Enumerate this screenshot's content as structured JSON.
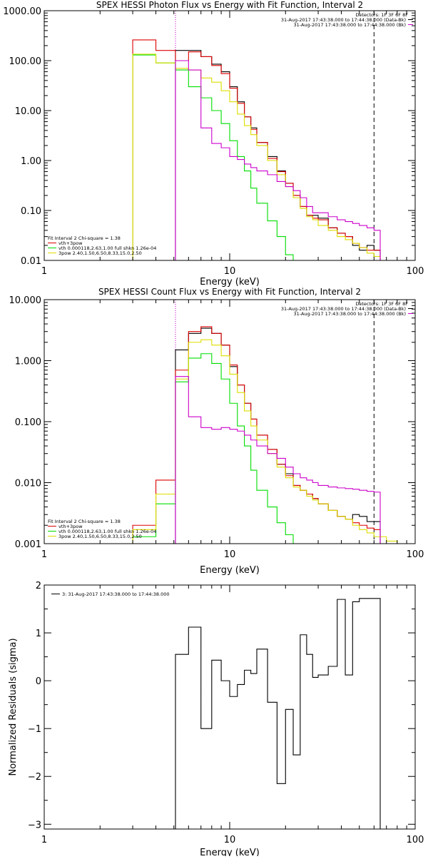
{
  "chart_data": [
    {
      "type": "line",
      "title": "SPEX HESSI Photon Flux vs Energy with Fit Function, Interval 2",
      "xlabel": "Energy (keV)",
      "ylabel": "",
      "xscale": "log",
      "yscale": "log",
      "xlim": [
        1,
        100
      ],
      "ylim": [
        0.01,
        1000
      ],
      "xticks": [
        {
          "v": 1,
          "label": "1"
        },
        {
          "v": 10,
          "label": "10"
        },
        {
          "v": 100,
          "label": "100"
        }
      ],
      "yticks": [
        {
          "v": 0.01,
          "label": "0.01"
        },
        {
          "v": 0.1,
          "label": "0.10"
        },
        {
          "v": 1,
          "label": "1.00"
        },
        {
          "v": 10,
          "label": "10.00"
        },
        {
          "v": 100,
          "label": "100.00"
        },
        {
          "v": 1000,
          "label": "1000.00"
        }
      ],
      "vlines": [
        {
          "x": 5.1,
          "style": "dotted",
          "color": "#000000"
        },
        {
          "x": 5.1,
          "style": "dotted",
          "color": "#cc00cc"
        },
        {
          "x": 60,
          "style": "dashed",
          "color": "#000000"
        }
      ],
      "legend_top": {
        "header": "Detectors: 1F 3F 6F 8F",
        "entries": [
          {
            "label": "31-Aug-2017 17:43:38.000 to 17:44:38.000 (Data-Bk)",
            "color": "#000000"
          },
          {
            "label": "31-Aug-2017 17:43:38.000 to 17:44:38.000 (Bk)",
            "color": "#cc00cc"
          }
        ]
      },
      "legend_bottom": {
        "header": "Fit Interval 2   Chi-square = 1.38",
        "entries": [
          {
            "label": "vth+3pow",
            "color": "#dd0000"
          },
          {
            "label": "vth 0.000118,2.63,1.00   full shkn 1.26e-04",
            "color": "#00dd00"
          },
          {
            "label": "3pow 2.40,1.50,6.50,8.33,15.0,2.50",
            "color": "#dddd00"
          }
        ]
      },
      "series": [
        {
          "color": "#000000",
          "x": [
            5.1,
            6,
            7,
            8,
            9,
            10,
            11,
            12,
            13,
            14,
            16,
            18,
            20,
            22,
            24,
            26,
            28,
            30,
            34,
            38,
            42,
            46,
            50,
            55,
            60
          ],
          "values": [
            160,
            160,
            120,
            85,
            60,
            30,
            15,
            7.5,
            4.5,
            2.3,
            1.2,
            0.62,
            0.35,
            0.2,
            0.12,
            0.08,
            0.08,
            0.07,
            0.045,
            0.035,
            0.03,
            0.02,
            0.016,
            0.02,
            0.016
          ]
        },
        {
          "color": "#dd0000",
          "x": [
            3,
            4,
            5.1,
            6,
            7,
            8,
            9,
            10,
            11,
            12,
            13,
            14,
            16,
            18,
            20,
            22,
            24,
            26,
            28,
            30,
            34,
            38,
            42,
            46,
            50,
            55,
            60
          ],
          "values": [
            260,
            160,
            100,
            150,
            120,
            80,
            55,
            28,
            14,
            7.5,
            4.2,
            2.3,
            1.1,
            0.6,
            0.35,
            0.2,
            0.12,
            0.08,
            0.07,
            0.065,
            0.045,
            0.035,
            0.03,
            0.022,
            0.018,
            0.016,
            0.016
          ]
        },
        {
          "color": "#00dd00",
          "x": [
            3,
            4,
            5.1,
            6,
            7,
            8,
            9,
            10,
            11,
            12,
            13,
            14,
            16,
            18,
            20,
            22,
            24,
            26
          ],
          "values": [
            130,
            90,
            65,
            30,
            18,
            10,
            5.5,
            2.5,
            1.2,
            0.62,
            0.28,
            0.14,
            0.062,
            0.03,
            0.013,
            0.01,
            0.01,
            0.01
          ]
        },
        {
          "color": "#dddd00",
          "x": [
            3,
            4,
            5.1,
            6,
            7,
            8,
            9,
            10,
            11,
            12,
            13,
            14,
            16,
            18,
            20,
            22,
            24,
            26,
            28,
            30,
            34,
            38,
            42,
            46,
            50,
            55,
            60
          ],
          "values": [
            135,
            90,
            70,
            65,
            45,
            37,
            25,
            15,
            8.5,
            5,
            3.3,
            2,
            1,
            0.52,
            0.3,
            0.18,
            0.11,
            0.075,
            0.065,
            0.05,
            0.04,
            0.03,
            0.026,
            0.022,
            0.018,
            0.014,
            0.012
          ]
        },
        {
          "color": "#cc00cc",
          "x": [
            5.1,
            6,
            7,
            8,
            9,
            10,
            11,
            12,
            13,
            14,
            16,
            18,
            20,
            22,
            24,
            26,
            28,
            30,
            34,
            38,
            42,
            46,
            50,
            55,
            60
          ],
          "values": [
            100,
            65,
            4.5,
            2.2,
            1.8,
            1.2,
            1.05,
            0.85,
            0.72,
            0.62,
            0.52,
            0.38,
            0.3,
            0.25,
            0.18,
            0.12,
            0.09,
            0.09,
            0.075,
            0.065,
            0.06,
            0.055,
            0.05,
            0.045,
            0.04
          ]
        }
      ]
    },
    {
      "type": "line",
      "title": "SPEX HESSI Count Flux vs Energy with Fit Function, Interval 2",
      "xlabel": "Energy (keV)",
      "ylabel": "",
      "xscale": "log",
      "yscale": "log",
      "xlim": [
        1,
        100
      ],
      "ylim": [
        0.001,
        10
      ],
      "xticks": [
        {
          "v": 1,
          "label": "1"
        },
        {
          "v": 10,
          "label": "10"
        },
        {
          "v": 100,
          "label": "100"
        }
      ],
      "yticks": [
        {
          "v": 0.001,
          "label": "0.001"
        },
        {
          "v": 0.01,
          "label": "0.010"
        },
        {
          "v": 0.1,
          "label": "0.100"
        },
        {
          "v": 1,
          "label": "1.000"
        },
        {
          "v": 10,
          "label": "10.000"
        }
      ],
      "vlines": [
        {
          "x": 5.1,
          "style": "dotted",
          "color": "#000000"
        },
        {
          "x": 5.1,
          "style": "dotted",
          "color": "#cc00cc"
        },
        {
          "x": 60,
          "style": "dashed",
          "color": "#000000"
        }
      ],
      "legend_top": {
        "header": "Detectors: 1F 3F 6F 8F",
        "entries": [
          {
            "label": "31-Aug-2017 17:43:38.000 to 17:44:38.000 (Data-Bk)",
            "color": "#000000"
          },
          {
            "label": "31-Aug-2017 17:43:38.000 to 17:44:38.000 (Bk)",
            "color": "#cc00cc"
          }
        ]
      },
      "legend_bottom": {
        "header": "Fit Interval 2   Chi-square = 1.38",
        "entries": [
          {
            "label": "vth+3pow",
            "color": "#dd0000"
          },
          {
            "label": "vth 0.000118,2.63,1.00   full shkn 1.26e-04",
            "color": "#00dd00"
          },
          {
            "label": "3pow 2.40,1.50,6.50,8.33,15.0,2.50",
            "color": "#dddd00"
          }
        ]
      },
      "series": [
        {
          "color": "#000000",
          "x": [
            5.1,
            6,
            7,
            8,
            9,
            10,
            11,
            12,
            13,
            14,
            16,
            18,
            20,
            22,
            24,
            26,
            28,
            30,
            34,
            38,
            42,
            46,
            50,
            55,
            60
          ],
          "values": [
            1.5,
            2.8,
            3.4,
            2.8,
            1.8,
            0.8,
            0.4,
            0.2,
            0.11,
            0.06,
            0.035,
            0.02,
            0.014,
            0.009,
            0.0075,
            0.0065,
            0.0055,
            0.0045,
            0.0035,
            0.0028,
            0.0025,
            0.003,
            0.0028,
            0.0023,
            0.0023
          ]
        },
        {
          "color": "#dd0000",
          "x": [
            3,
            4,
            5.1,
            6,
            7,
            8,
            9,
            10,
            11,
            12,
            13,
            14,
            16,
            18,
            20,
            22,
            24,
            26,
            28,
            30,
            34,
            38,
            42,
            46,
            50,
            55,
            60
          ],
          "values": [
            0.002,
            0.011,
            0.7,
            3,
            3.6,
            2.8,
            1.8,
            0.85,
            0.4,
            0.2,
            0.11,
            0.06,
            0.035,
            0.02,
            0.013,
            0.009,
            0.0075,
            0.0065,
            0.0055,
            0.0045,
            0.0035,
            0.0028,
            0.0025,
            0.0022,
            0.002,
            0.0018,
            0.0017
          ]
        },
        {
          "color": "#00dd00",
          "x": [
            3,
            4,
            5.1,
            6,
            7,
            8,
            9,
            10,
            11,
            12,
            13,
            14,
            16,
            18,
            20,
            22
          ],
          "values": [
            0.0013,
            0.0045,
            0.45,
            1.1,
            1.3,
            0.9,
            0.5,
            0.2,
            0.085,
            0.04,
            0.016,
            0.0075,
            0.004,
            0.0022,
            0.0014,
            0.001
          ]
        },
        {
          "color": "#dddd00",
          "x": [
            3,
            4,
            5.1,
            6,
            7,
            8,
            9,
            10,
            11,
            12,
            13,
            14,
            16,
            18,
            20,
            22,
            24,
            26,
            28,
            30,
            34,
            38,
            42,
            46,
            50,
            55,
            60,
            70,
            80
          ],
          "values": [
            0.0017,
            0.0065,
            0.5,
            2,
            2.2,
            1.8,
            1.2,
            0.6,
            0.3,
            0.15,
            0.085,
            0.05,
            0.03,
            0.018,
            0.012,
            0.0085,
            0.0075,
            0.006,
            0.0052,
            0.0045,
            0.0035,
            0.0028,
            0.0025,
            0.002,
            0.0017,
            0.0015,
            0.0013,
            0.0011,
            0.001
          ]
        },
        {
          "color": "#cc00cc",
          "x": [
            5.1,
            6,
            7,
            8,
            9,
            10,
            11,
            12,
            13,
            14,
            16,
            18,
            20,
            22,
            24,
            26,
            28,
            30,
            34,
            38,
            42,
            46,
            50,
            55,
            60
          ],
          "values": [
            0.55,
            0.12,
            0.08,
            0.075,
            0.08,
            0.075,
            0.07,
            0.06,
            0.05,
            0.04,
            0.03,
            0.025,
            0.018,
            0.014,
            0.012,
            0.011,
            0.01,
            0.009,
            0.0085,
            0.0082,
            0.008,
            0.0078,
            0.0075,
            0.0072,
            0.007
          ]
        }
      ]
    },
    {
      "type": "line",
      "title": "",
      "xlabel": "Energy (keV)",
      "ylabel": "Normalized Residuals (sigma)",
      "xscale": "log",
      "yscale": "linear",
      "xlim": [
        1,
        100
      ],
      "ylim": [
        -3.1,
        2
      ],
      "xticks": [
        {
          "v": 1,
          "label": "1"
        },
        {
          "v": 10,
          "label": "10"
        },
        {
          "v": 100,
          "label": "100"
        }
      ],
      "yticks": [
        {
          "v": -3,
          "label": "−3"
        },
        {
          "v": -2,
          "label": "−2"
        },
        {
          "v": -1,
          "label": "−1"
        },
        {
          "v": 0,
          "label": "0"
        },
        {
          "v": 1,
          "label": "1"
        },
        {
          "v": 2,
          "label": "2"
        }
      ],
      "vlines": [],
      "legend_top": {
        "header": "",
        "entries": [
          {
            "label": "3: 31-Aug-2017 17:43:38.000 to 17:44:38.000",
            "color": "#000000"
          }
        ]
      },
      "legend_bottom": null,
      "series": [
        {
          "color": "#000000",
          "x": [
            5.1,
            6,
            7,
            8,
            9,
            10,
            11,
            12,
            13,
            14,
            16,
            18,
            20,
            22,
            24,
            26,
            28,
            30,
            34,
            38,
            42,
            46,
            50,
            55,
            60
          ],
          "values": [
            0.55,
            1.12,
            -1,
            0.43,
            0,
            -0.33,
            -0.08,
            0.22,
            0.15,
            0.66,
            -0.45,
            -2.15,
            -0.6,
            -1.55,
            0.96,
            0.55,
            0.07,
            0.12,
            0.3,
            1.7,
            0.12,
            1.65,
            1.72,
            1.72,
            1.72
          ]
        }
      ]
    }
  ]
}
